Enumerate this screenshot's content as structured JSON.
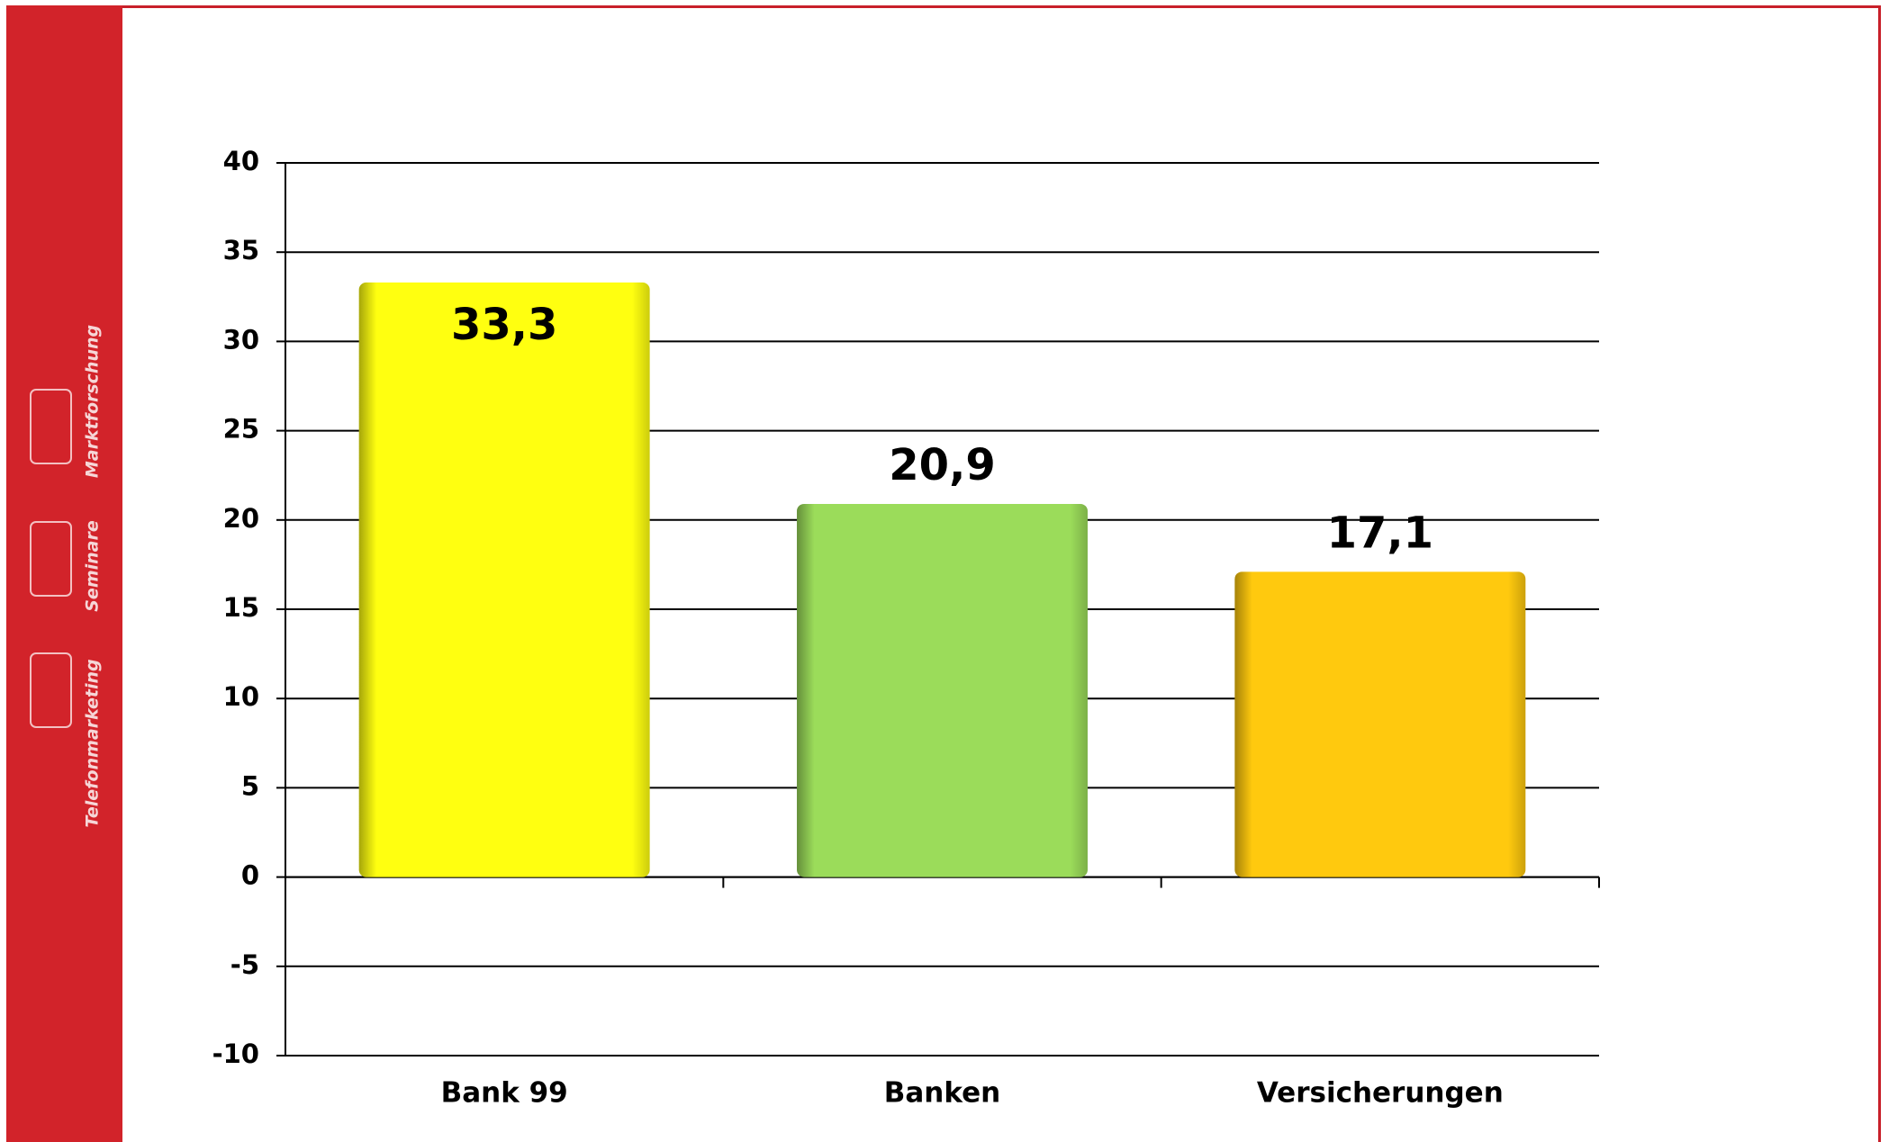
{
  "sidebar": {
    "items": [
      "Marktforschung",
      "Seminare",
      "Telefonmarketing"
    ]
  },
  "chart_data": {
    "type": "bar",
    "categories": [
      "Bank 99",
      "Banken",
      "Versicherungen"
    ],
    "values": [
      33.3,
      20.9,
      17.1
    ],
    "value_labels": [
      "33,3",
      "20,9",
      "17,1"
    ],
    "colors": [
      "#ffff10",
      "#9bdc5a",
      "#ffc90e"
    ],
    "label_position": [
      "inside",
      "outside",
      "outside"
    ],
    "ylim": [
      -10,
      40
    ],
    "yticks": [
      -10,
      -5,
      0,
      5,
      10,
      15,
      20,
      25,
      30,
      35,
      40
    ],
    "grid": true
  }
}
